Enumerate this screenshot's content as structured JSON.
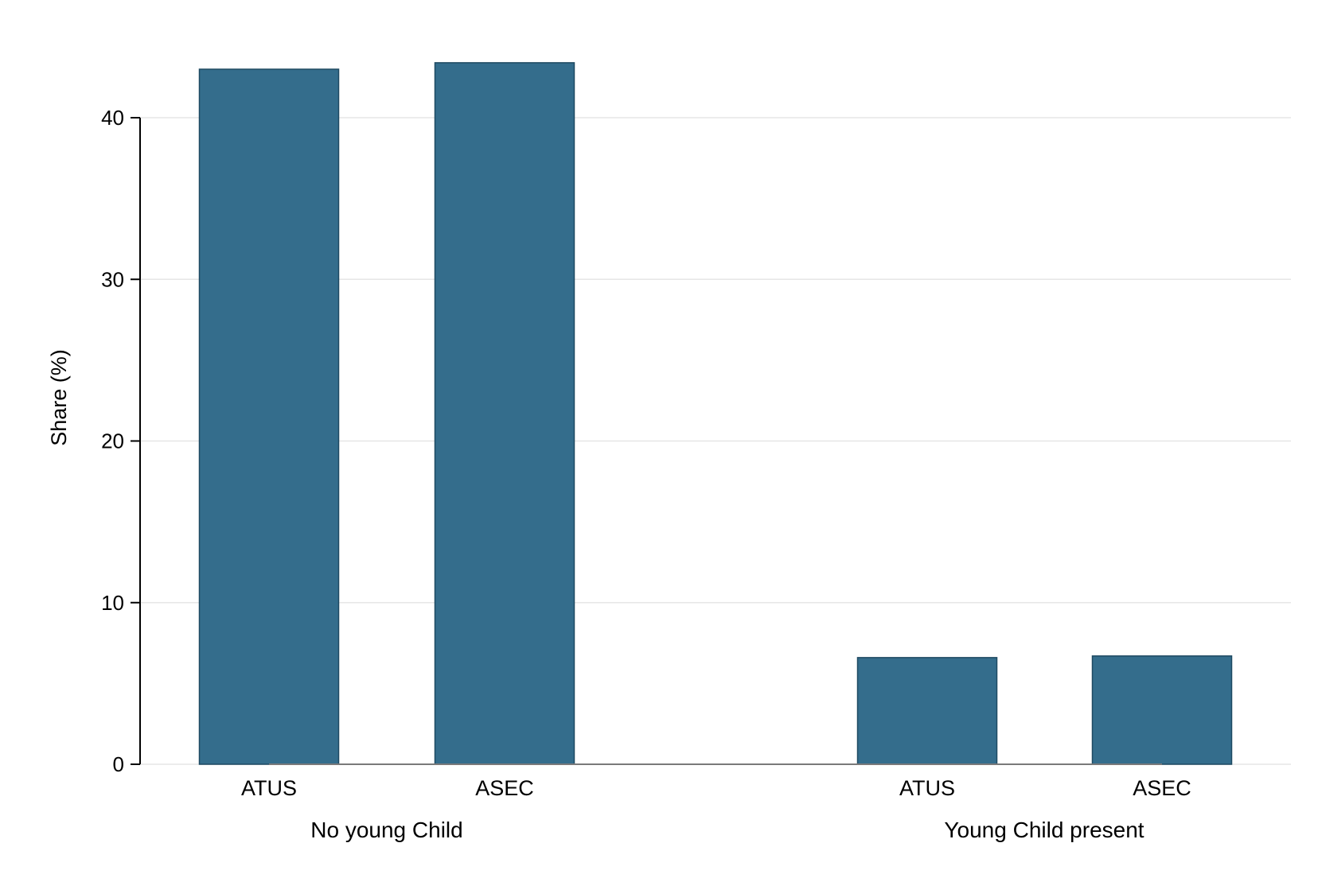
{
  "chart_data": {
    "type": "bar",
    "ylabel": "Share (%)",
    "ylim": [
      0,
      44
    ],
    "yticks": [
      0,
      10,
      20,
      30,
      40
    ],
    "grid": true,
    "bar_color": "#346d8c",
    "bar_edge_color": "#1f4a62",
    "groups": [
      {
        "name": "No young Child",
        "categories": [
          "ATUS",
          "ASEC"
        ],
        "values": [
          43.0,
          43.4
        ]
      },
      {
        "name": "Young Child present",
        "categories": [
          "ATUS",
          "ASEC"
        ],
        "values": [
          6.6,
          6.7
        ]
      }
    ]
  }
}
